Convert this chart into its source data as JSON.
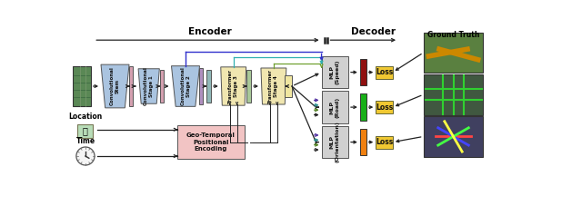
{
  "fig_width": 6.4,
  "fig_height": 2.27,
  "dpi": 100,
  "bg_color": "#ffffff",
  "encoder_label": "Encoder",
  "decoder_label": "Decoder",
  "ground_truth_label": "Ground Truth",
  "location_label": "Location",
  "time_label": "Time",
  "conv_stem_label": "Convolutional\nStem",
  "conv1_label": "Convolutional\nStage 1",
  "conv2_label": "Convolutional\nStage 2",
  "trans3_label": "Transformer\nStage 3",
  "trans4_label": "Transformer\nStage 4",
  "geo_label": "Geo-Temporal\nPositional\nEncoding",
  "mlp_speed_label": "MLP\n(Speed)",
  "mlp_road_label": "MLP\n(Road)",
  "mlp_orient_label": "MLP\n(Orientation)",
  "loss_label": "Loss",
  "conv_color": "#aac4e0",
  "pink_bar_color": "#d4a0b0",
  "purple_bar_color": "#b090c0",
  "teal_bar_color": "#90b8b8",
  "green_bar_color": "#a8c898",
  "trans_color": "#f0e6b0",
  "small_yellow_color": "#f0e6a0",
  "geo_color": "#f2c4c4",
  "mlp_color": "#d0d0d0",
  "loss_color": "#f0c832",
  "speed_bar_color": "#901010",
  "road_bar_color": "#18b018",
  "orient_bar_color": "#f08010",
  "arrow_color": "#222222",
  "blue_line_color": "#3030cc",
  "cyan_line_color": "#30b0b0",
  "green_skip_color": "#70a030",
  "purple_arrow_color": "#5030a0",
  "teal_arrow_color": "#309090",
  "green_arrow_color": "#508020"
}
